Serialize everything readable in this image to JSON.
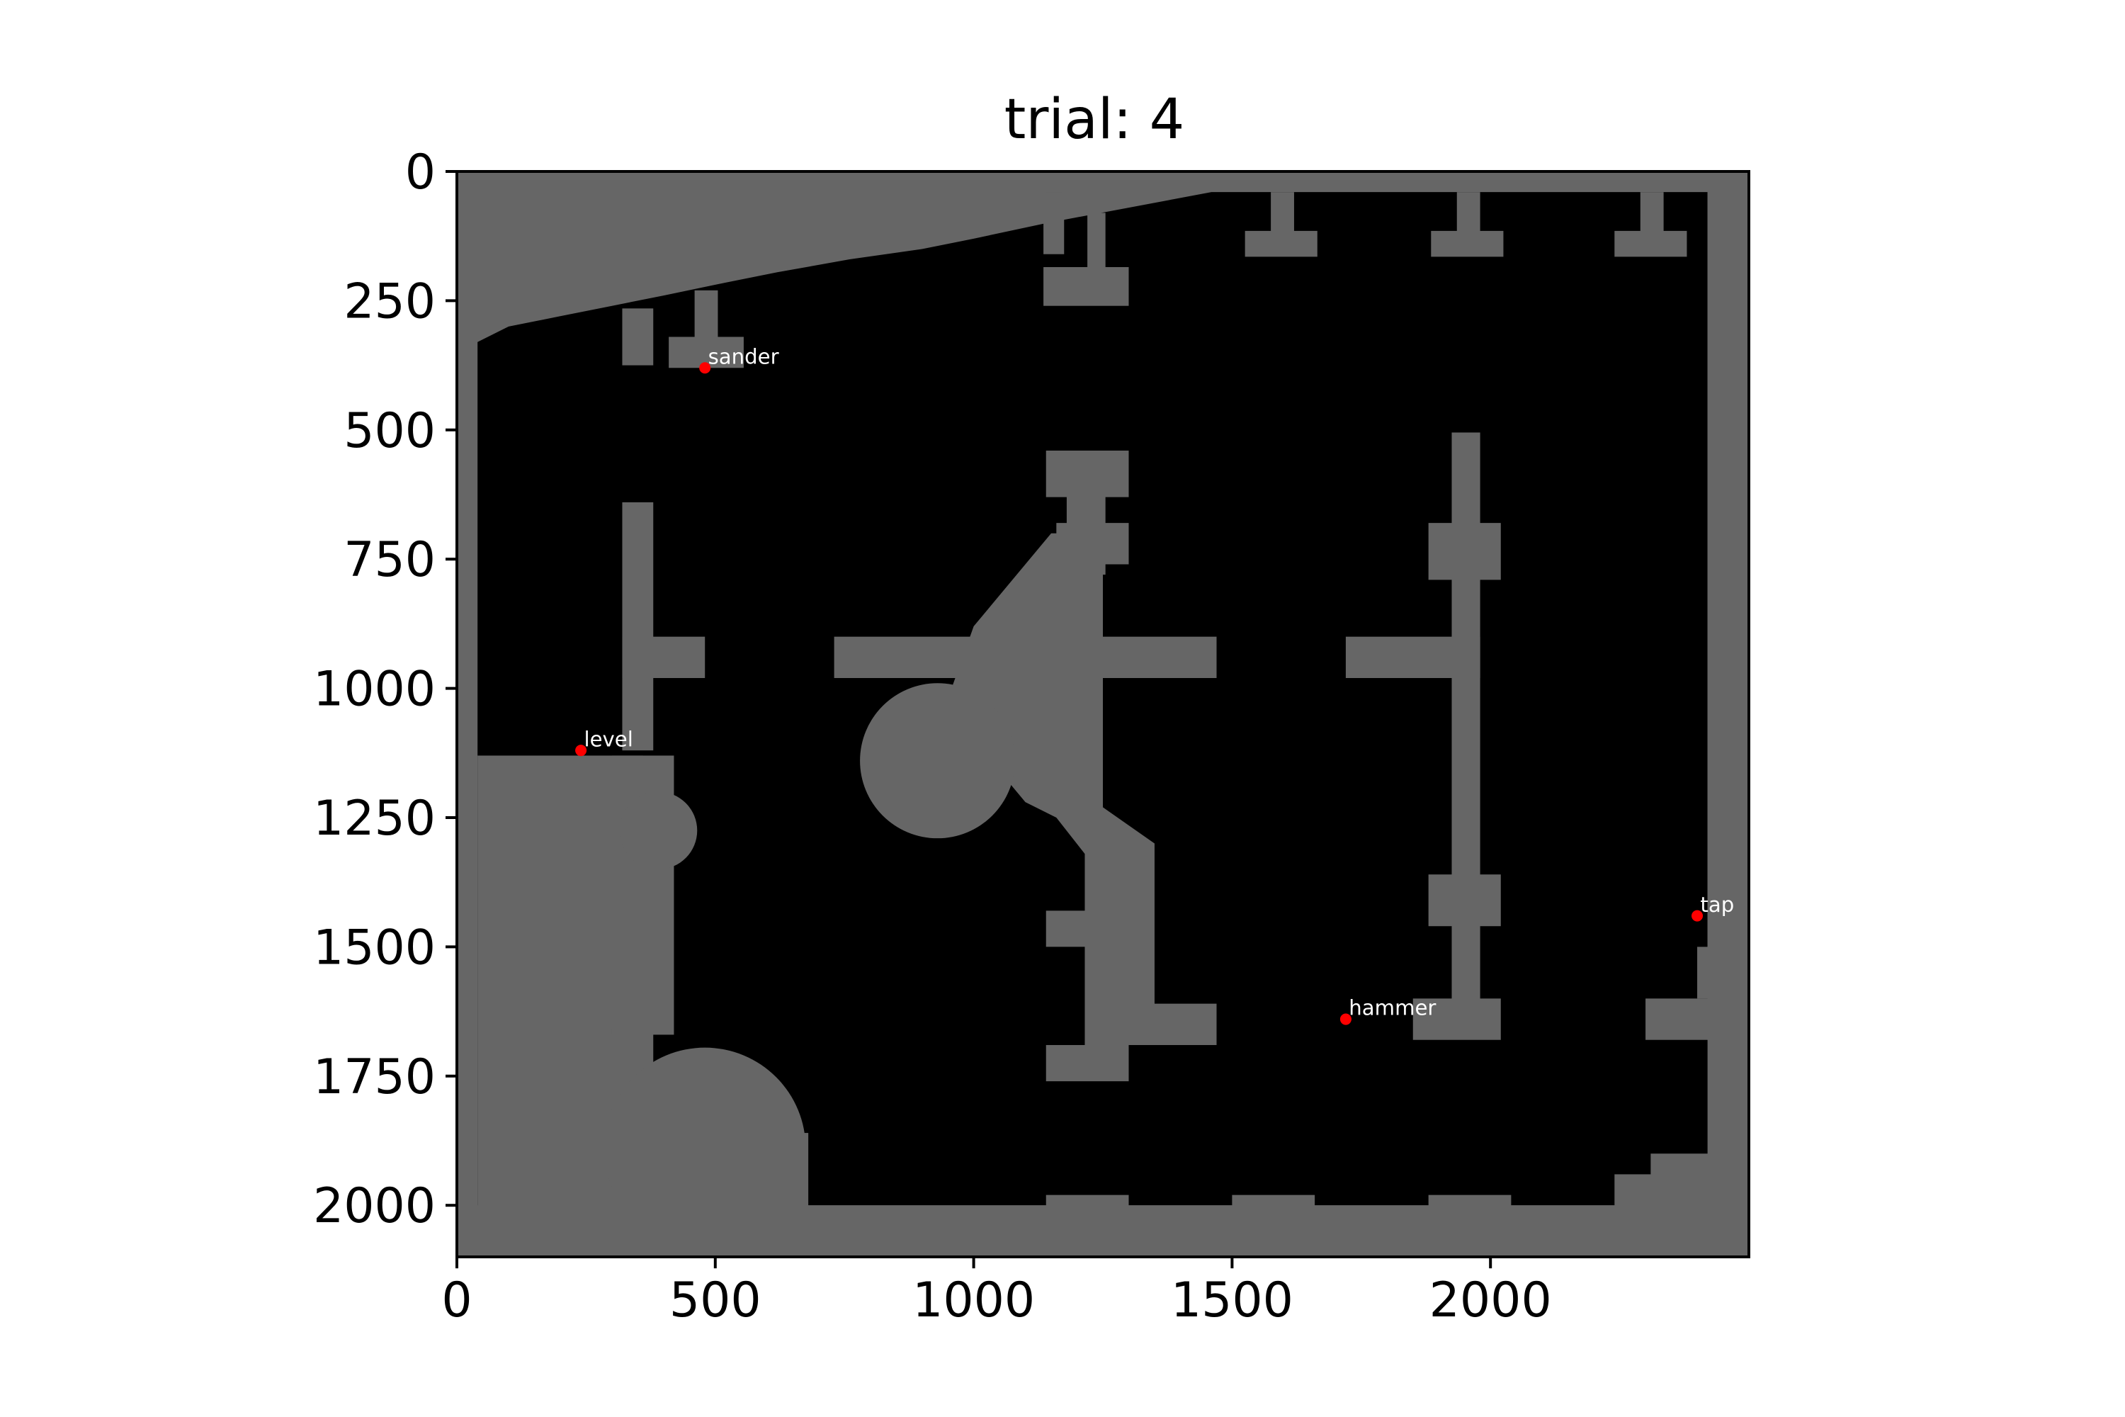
{
  "title": "trial: 4",
  "map": {
    "x_range": [
      0,
      2500
    ],
    "y_range": [
      0,
      2100
    ],
    "y_inverted": true,
    "wall_color": "#666666",
    "free_color": "#000000",
    "marker_color": "#ff0000",
    "label_color": "#ffffff",
    "x_ticks": [
      {
        "value": 0,
        "label": "0"
      },
      {
        "value": 500,
        "label": "500"
      },
      {
        "value": 1000,
        "label": "1000"
      },
      {
        "value": 1500,
        "label": "1500"
      },
      {
        "value": 2000,
        "label": "2000"
      }
    ],
    "y_ticks": [
      {
        "value": 0,
        "label": "0"
      },
      {
        "value": 250,
        "label": "250"
      },
      {
        "value": 500,
        "label": "500"
      },
      {
        "value": 750,
        "label": "750"
      },
      {
        "value": 1000,
        "label": "1000"
      },
      {
        "value": 1250,
        "label": "1250"
      },
      {
        "value": 1500,
        "label": "1500"
      },
      {
        "value": 1750,
        "label": "1750"
      },
      {
        "value": 2000,
        "label": "2000"
      }
    ],
    "markers": [
      {
        "name": "sander",
        "label": "sander",
        "x": 480,
        "y": 380
      },
      {
        "name": "level",
        "label": "level",
        "x": 240,
        "y": 1120
      },
      {
        "name": "tap",
        "label": "tap",
        "x": 2400,
        "y": 1440
      },
      {
        "name": "hammer",
        "label": "hammer",
        "x": 1720,
        "y": 1640
      }
    ]
  }
}
